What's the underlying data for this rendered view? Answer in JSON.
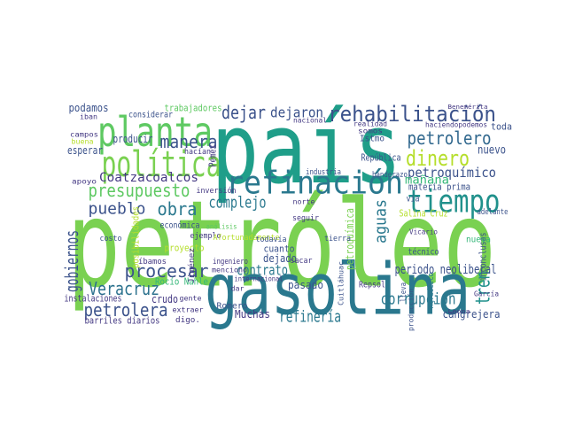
{
  "words": [
    {
      "text": "petróleo",
      "color": "#7ad151"
    },
    {
      "text": "país",
      "color": "#1f9e89"
    },
    {
      "text": "gasolina",
      "color": "#2a788e"
    },
    {
      "text": "planta",
      "color": "#5ec962"
    },
    {
      "text": "política",
      "color": "#7ad151"
    },
    {
      "text": "refinación",
      "color": "#2a788e"
    },
    {
      "text": "rehabilitación",
      "color": "#3b528b"
    },
    {
      "text": "tiempo",
      "color": "#21918c"
    },
    {
      "text": "petrolero",
      "color": "#31688e"
    },
    {
      "text": "dinero",
      "color": "#b5de2b"
    },
    {
      "text": "petroquímico",
      "color": "#3b528b"
    },
    {
      "text": "mañana",
      "color": "#35b779"
    },
    {
      "text": "nuevo",
      "color": "#3b528b"
    },
    {
      "text": "materia prima",
      "color": "#3b528b"
    },
    {
      "text": "dejar",
      "color": "#3b528b"
    },
    {
      "text": "dejaron",
      "color": "#3b528b"
    },
    {
      "text": "manera",
      "color": "#3b528b"
    },
    {
      "text": "presupuesto",
      "color": "#5ec962"
    },
    {
      "text": "Coatzacoalcos",
      "color": "#443983"
    },
    {
      "text": "obra",
      "color": "#2a788e"
    },
    {
      "text": "complejo",
      "color": "#2a788e"
    },
    {
      "text": "pueblo",
      "color": "#3b528b"
    },
    {
      "text": "aguas",
      "color": "#2a788e"
    },
    {
      "text": "procesar",
      "color": "#3b528b"
    },
    {
      "text": "Veracruz",
      "color": "#2c728e"
    },
    {
      "text": "petrolera",
      "color": "#3b528b"
    },
    {
      "text": "gobiernos",
      "color": "#3b528b"
    },
    {
      "text": "contrato",
      "color": "#2a788e"
    },
    {
      "text": "refinería",
      "color": "#2a788e"
    },
    {
      "text": "corrupción",
      "color": "#2a788e"
    },
    {
      "text": "tren",
      "color": "#21918c"
    },
    {
      "text": "cangrejera",
      "color": "#3b528b"
    },
    {
      "text": "periodo neoliberal",
      "color": "#3b528b"
    },
    {
      "text": "Salina Cruz",
      "color": "#b5de2b"
    },
    {
      "text": "pasado",
      "color": "#3b528b"
    },
    {
      "text": "dejado",
      "color": "#3b528b"
    },
    {
      "text": "Muchas",
      "color": "#443983"
    },
    {
      "text": "barriles diarios",
      "color": "#443983"
    },
    {
      "text": "crudo",
      "color": "#443983"
    },
    {
      "text": "instalaciones",
      "color": "#443983"
    },
    {
      "text": "Rocío Nahle",
      "color": "#35b779"
    },
    {
      "text": "podamos",
      "color": "#3b528b"
    },
    {
      "text": "trabajadores",
      "color": "#5ec962"
    },
    {
      "text": "producir",
      "color": "#3b528b"
    },
    {
      "text": "esperar",
      "color": "#3b528b"
    },
    {
      "text": "considerar",
      "color": "#3b528b"
    },
    {
      "text": "Pemex",
      "color": "#443983"
    },
    {
      "text": "República",
      "color": "#3b528b"
    },
    {
      "text": "industria",
      "color": "#3b528b"
    },
    {
      "text": "técnico",
      "color": "#3b528b"
    },
    {
      "text": "inconclusas",
      "color": "#3b528b"
    },
    {
      "text": "Repsol",
      "color": "#443983"
    },
    {
      "text": "petroquímica",
      "color": "#7ad151"
    },
    {
      "text": "ejemplo",
      "color": "#443983"
    },
    {
      "text": "económica",
      "color": "#3b528b"
    },
    {
      "text": "Afortunadamente",
      "color": "#b5de2b"
    },
    {
      "text": "cuanto",
      "color": "#3b528b"
    },
    {
      "text": "todavía",
      "color": "#3b528b"
    },
    {
      "text": "ingeniero",
      "color": "#443983"
    },
    {
      "text": "proyecto",
      "color": "#b5de2b"
    },
    {
      "text": "posibilidades",
      "color": "#b5de2b"
    },
    {
      "text": "íbamos",
      "color": "#443983"
    },
    {
      "text": "costo",
      "color": "#3b528b"
    },
    {
      "text": "Romero",
      "color": "#3b528b"
    },
    {
      "text": "Istmo",
      "color": "#3b528b"
    },
    {
      "text": "vía",
      "color": "#3b528b"
    },
    {
      "text": "banderazo",
      "color": "#3b528b"
    },
    {
      "text": "toda",
      "color": "#3b528b"
    },
    {
      "text": "haciendopodemos",
      "color": "#443983"
    },
    {
      "text": "nacional",
      "color": "#443983"
    },
    {
      "text": "adelante",
      "color": "#3b528b"
    },
    {
      "text": "nueva",
      "color": "#35b779"
    },
    {
      "text": "sacar",
      "color": "#443983"
    },
    {
      "text": "Agradezco",
      "color": "#2a788e"
    },
    {
      "text": "lleva",
      "color": "#3b528b"
    },
    {
      "text": "digo.",
      "color": "#443983"
    },
    {
      "text": "gente",
      "color": "#443983"
    },
    {
      "text": "Jiménez",
      "color": "#443983"
    },
    {
      "text": "hacían",
      "color": "#443983"
    },
    {
      "text": "apoyo",
      "color": "#443983"
    },
    {
      "text": "norte",
      "color": "#443983"
    },
    {
      "text": "tierra",
      "color": "#3b528b"
    },
    {
      "text": "Vicario",
      "color": "#443983"
    },
    {
      "text": "Cuitláhuac",
      "color": "#3b528b"
    },
    {
      "text": "extraer",
      "color": "#443983"
    },
    {
      "text": "dar",
      "color": "#443983"
    },
    {
      "text": "iban",
      "color": "#443983"
    },
    {
      "text": "campos",
      "color": "#443983"
    },
    {
      "text": "buena",
      "color": "#b5de2b"
    },
    {
      "text": "realidad",
      "color": "#443983"
    },
    {
      "text": "somos",
      "color": "#443983"
    },
    {
      "text": "Benemérita",
      "color": "#443983"
    },
    {
      "text": "inversión",
      "color": "#443983"
    },
    {
      "text": "seguir",
      "color": "#443983"
    },
    {
      "text": "mencionó",
      "color": "#443983"
    },
    {
      "text": "análisis",
      "color": "#5ec962"
    },
    {
      "text": "internacional",
      "color": "#443983"
    },
    {
      "text": "producción",
      "color": "#3b528b"
    },
    {
      "text": "Leona",
      "color": "#443983"
    },
    {
      "text": "García",
      "color": "#443983"
    }
  ]
}
